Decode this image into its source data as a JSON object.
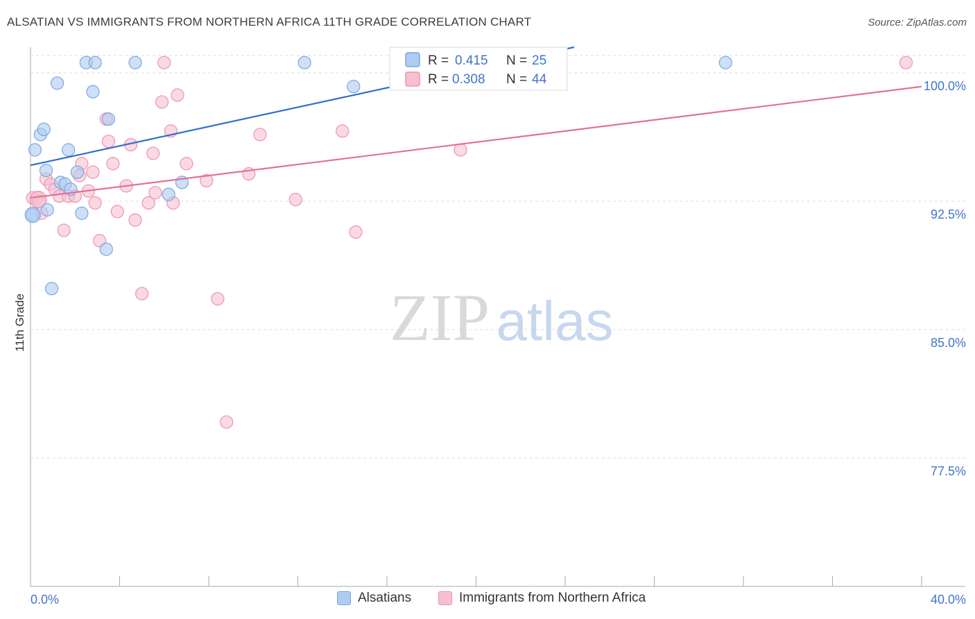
{
  "title": "ALSATIAN VS IMMIGRANTS FROM NORTHERN AFRICA 11TH GRADE CORRELATION CHART",
  "source": "Source: ZipAtlas.com",
  "watermark": {
    "zip": "ZIP",
    "atlas": "atlas"
  },
  "colors": {
    "blue_fill": "#aecbf2",
    "blue_stroke": "#7aa6df",
    "blue_line": "#2f6fcc",
    "pink_fill": "#f7bfd1",
    "pink_stroke": "#ec93b1",
    "pink_line": "#e27099",
    "accent_text": "#3f76c9",
    "grid": "#dddddd",
    "axis": "#aaaaaa"
  },
  "legend_top": [
    {
      "r_label": "R =",
      "r_value": "0.415",
      "n_label": "N =",
      "n_value": "25"
    },
    {
      "r_label": "R =",
      "r_value": "0.308",
      "n_label": "N =",
      "n_value": "44"
    }
  ],
  "legend_bottom": [
    "Alsatians",
    "Immigrants from Northern Africa"
  ],
  "chart_data": {
    "type": "scatter",
    "title": "ALSATIAN VS IMMIGRANTS FROM NORTHERN AFRICA 11TH GRADE CORRELATION CHART",
    "xlabel": "",
    "ylabel": "11th Grade",
    "xlim": [
      0,
      40
    ],
    "ylim": [
      70,
      101.5
    ],
    "x_tick_labels": [
      "0.0%",
      "40.0%"
    ],
    "y_ticks": [
      77.5,
      85.0,
      92.5,
      100.0
    ],
    "y_tick_labels": [
      "77.5%",
      "85.0%",
      "92.5%",
      "100.0%"
    ],
    "grid": true,
    "legend_position": "top-center",
    "series": [
      {
        "name": "Alsatians",
        "r": 0.415,
        "n": 25,
        "trend": {
          "x0": 0,
          "y0": 94.6,
          "x1": 24.4,
          "y1": 101.5
        },
        "points": [
          [
            0.1,
            91.7
          ],
          [
            0.2,
            95.5
          ],
          [
            0.45,
            96.4
          ],
          [
            0.6,
            96.7
          ],
          [
            0.7,
            94.3
          ],
          [
            0.75,
            92.0
          ],
          [
            0.95,
            87.4
          ],
          [
            1.2,
            99.4
          ],
          [
            1.35,
            93.6
          ],
          [
            1.55,
            93.5
          ],
          [
            1.7,
            95.5
          ],
          [
            1.8,
            93.2
          ],
          [
            2.1,
            94.2
          ],
          [
            2.3,
            91.8
          ],
          [
            2.5,
            100.6
          ],
          [
            2.8,
            98.9
          ],
          [
            2.9,
            100.6
          ],
          [
            3.4,
            89.7
          ],
          [
            3.5,
            97.3
          ],
          [
            4.7,
            100.6
          ],
          [
            6.2,
            92.9
          ],
          [
            6.8,
            93.6
          ],
          [
            12.3,
            100.6
          ],
          [
            14.5,
            99.2
          ],
          [
            31.2,
            100.6
          ]
        ]
      },
      {
        "name": "Immigrants from Northern Africa",
        "r": 0.308,
        "n": 44,
        "trend": {
          "x0": 0,
          "y0": 92.7,
          "x1": 40,
          "y1": 99.2
        },
        "points": [
          [
            0.1,
            92.7
          ],
          [
            0.3,
            92.7
          ],
          [
            0.4,
            92.5
          ],
          [
            0.5,
            91.8
          ],
          [
            0.7,
            93.8
          ],
          [
            0.9,
            93.5
          ],
          [
            1.1,
            93.2
          ],
          [
            1.3,
            92.8
          ],
          [
            1.5,
            90.8
          ],
          [
            1.7,
            92.8
          ],
          [
            2.0,
            92.8
          ],
          [
            2.2,
            94.0
          ],
          [
            2.3,
            94.7
          ],
          [
            2.6,
            93.1
          ],
          [
            2.8,
            94.2
          ],
          [
            2.9,
            92.4
          ],
          [
            3.1,
            90.2
          ],
          [
            3.4,
            97.3
          ],
          [
            3.5,
            96.0
          ],
          [
            3.7,
            94.7
          ],
          [
            3.9,
            91.9
          ],
          [
            4.3,
            93.4
          ],
          [
            4.5,
            95.8
          ],
          [
            4.7,
            91.4
          ],
          [
            5.0,
            87.1
          ],
          [
            5.3,
            92.4
          ],
          [
            5.5,
            95.3
          ],
          [
            5.6,
            93.0
          ],
          [
            5.9,
            98.3
          ],
          [
            6.0,
            100.6
          ],
          [
            6.3,
            96.6
          ],
          [
            6.4,
            92.4
          ],
          [
            6.6,
            98.7
          ],
          [
            7.0,
            94.7
          ],
          [
            7.9,
            93.7
          ],
          [
            8.4,
            86.8
          ],
          [
            8.8,
            79.6
          ],
          [
            9.8,
            94.1
          ],
          [
            10.3,
            96.4
          ],
          [
            11.9,
            92.6
          ],
          [
            14.0,
            96.6
          ],
          [
            14.6,
            90.7
          ],
          [
            19.3,
            95.5
          ],
          [
            39.3,
            100.6
          ]
        ]
      }
    ]
  }
}
